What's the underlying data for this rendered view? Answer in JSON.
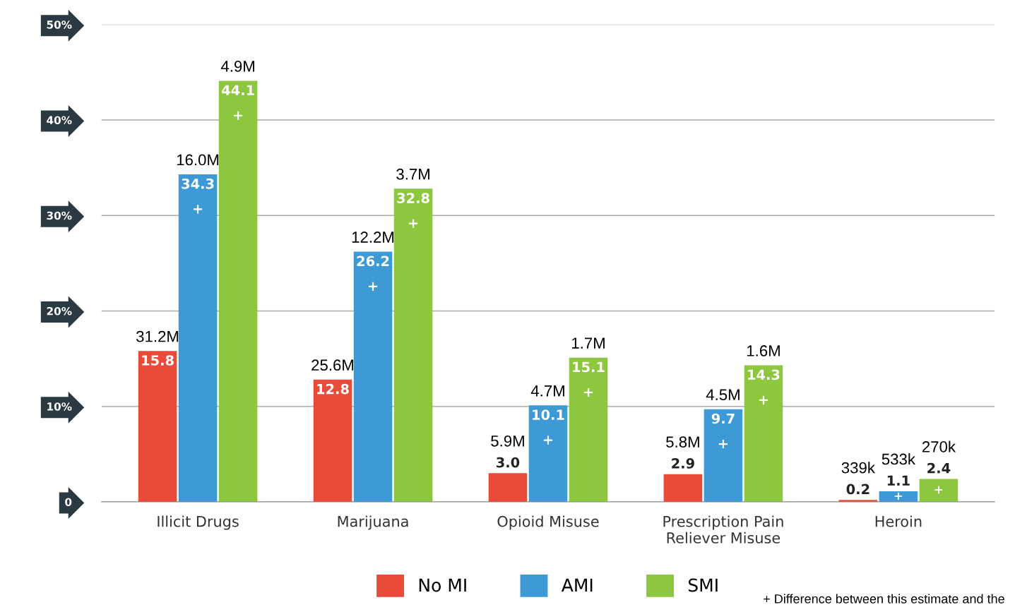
{
  "chart_data": {
    "type": "bar",
    "categories": [
      "Illicit Drugs",
      "Marijuana",
      "Opioid Misuse",
      "Prescription Pain\nReliever Misuse",
      "Heroin"
    ],
    "series": [
      {
        "name": "No MI",
        "color": "#e84b3a",
        "values": [
          15.8,
          12.8,
          3.0,
          2.9,
          0.2
        ],
        "value_labels": [
          "15.8",
          "12.8",
          "3.0",
          "2.9",
          "0.2"
        ]
      },
      {
        "name": "AMI",
        "color": "#3d9ad6",
        "values": [
          34.3,
          26.2,
          10.1,
          9.7,
          1.1
        ],
        "value_labels": [
          "34.3",
          "26.2",
          "10.1",
          "9.7",
          "1.1"
        ]
      },
      {
        "name": "SMI",
        "color": "#8dc63f",
        "values": [
          44.1,
          32.8,
          15.1,
          14.3,
          2.4
        ],
        "value_labels": [
          "44.1",
          "32.8",
          "15.1",
          "14.3",
          "2.4"
        ]
      }
    ],
    "ylim": [
      0,
      50
    ],
    "yticks": [
      {
        "value": 0,
        "label": "0"
      },
      {
        "value": 10,
        "label": "10%"
      },
      {
        "value": 20,
        "label": "20%"
      },
      {
        "value": 30,
        "label": "30%"
      },
      {
        "value": 40,
        "label": "40%"
      },
      {
        "value": 50,
        "label": "50%"
      }
    ],
    "grid": "y",
    "legend": "bottom",
    "annotations": [
      "31.2M",
      "16.0M",
      "4.9M",
      "25.6M",
      "12.2M",
      "3.7M",
      "5.9M",
      "4.7M",
      "1.7M",
      "5.8M",
      "4.5M",
      "1.6M",
      "339k",
      "533k",
      "270k",
      "+",
      "+",
      "+",
      "+",
      "+",
      "+",
      "+",
      "+",
      "+",
      "+",
      "+ Difference between this estimate and the"
    ]
  }
}
